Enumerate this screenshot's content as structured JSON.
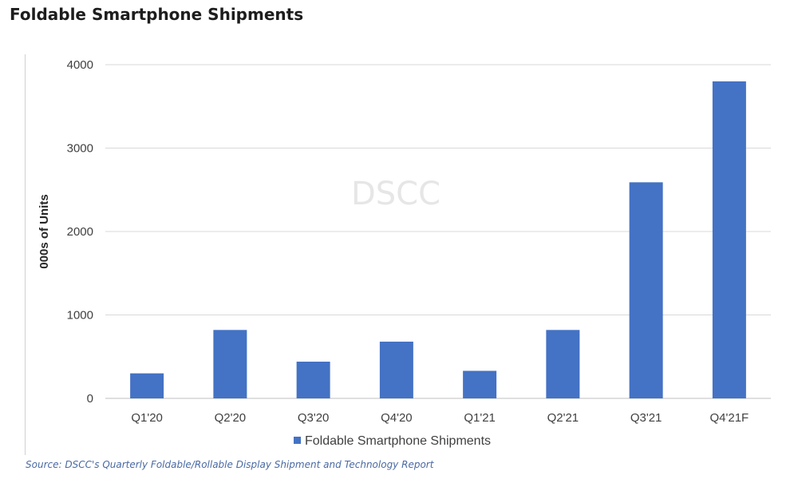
{
  "title": "Foldable Smartphone Shipments",
  "source": "Source: DSCC's Quarterly Foldable/Rollable Display Shipment and Technology Report",
  "watermark": "DSCC",
  "colors": {
    "bar": "#4472c4",
    "grid": "#d9d9d9",
    "axis": "#bfbfbf"
  },
  "chart_data": {
    "type": "bar",
    "categories": [
      "Q1'20",
      "Q2'20",
      "Q3'20",
      "Q4'20",
      "Q1'21",
      "Q2'21",
      "Q3'21",
      "Q4'21F"
    ],
    "series": [
      {
        "name": "Foldable Smartphone Shipments",
        "values": [
          300,
          820,
          440,
          680,
          330,
          820,
          2590,
          3800
        ]
      }
    ],
    "xlabel": "",
    "ylabel": "000s of Units",
    "ylim": [
      0,
      4000
    ],
    "yticks": [
      0,
      1000,
      2000,
      3000,
      4000
    ],
    "grid": true,
    "legend": "bottom"
  }
}
